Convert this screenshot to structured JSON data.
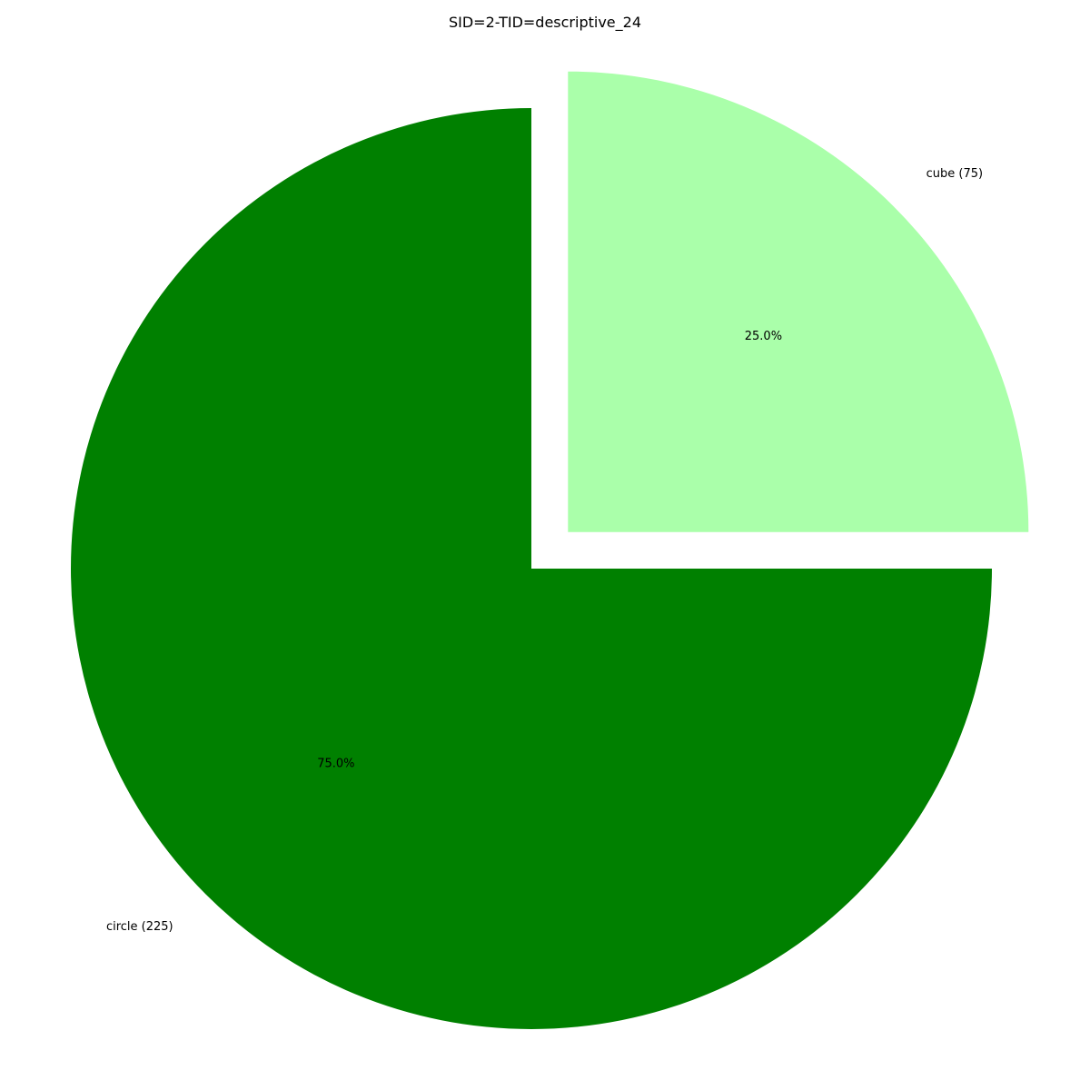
{
  "chart_data": {
    "type": "pie",
    "title": "SID=2-TID=descriptive_24",
    "slices": [
      {
        "label": "cube (75)",
        "value": 75,
        "percent_label": "25.0%",
        "color": "#aaffaa",
        "exploded": true
      },
      {
        "label": "circle (225)",
        "value": 225,
        "percent_label": "75.0%",
        "color": "#008000",
        "exploded": false
      }
    ],
    "start_angle_deg": 90,
    "direction": "clockwise"
  }
}
